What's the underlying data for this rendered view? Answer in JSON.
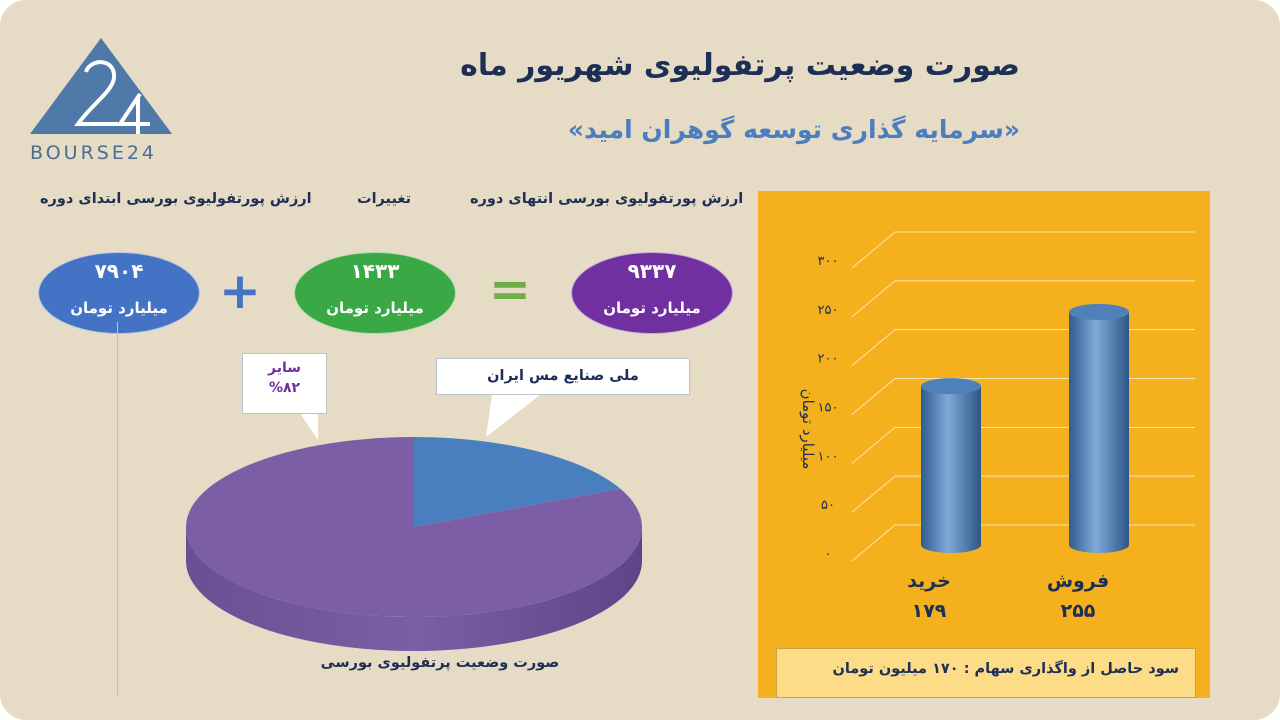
{
  "header": {
    "logo_text": "BOURSE24",
    "title": "صورت وضعیت پرتفولیوی شهریور ماه",
    "subtitle": "«سرمایه گذاری توسعه گوهران امید»"
  },
  "equation": {
    "start_label": "ارزش پورتفولیوی بورسی ابتدای دوره",
    "change_label": "تغییرات",
    "end_label": "ارزش پورتفولیوی بورسی انتهای دوره",
    "start_value": "۷۹۰۴",
    "change_value": "۱۴۳۳",
    "end_value": "۹۳۳۷",
    "unit": "میلیارد تومان",
    "start_color": "#4472c4",
    "change_color": "#3aa845",
    "end_color": "#7030a0",
    "plus_color": "#4472c4",
    "equals_color": "#70ad47"
  },
  "pie": {
    "caption": "صورت وضعیت پرتفولیوی بورسی",
    "callout_other_name": "سایر",
    "callout_other_pct": "%۸۲",
    "callout_meli": "ملی صنایع مس ایران"
  },
  "chart_data": [
    {
      "type": "pie",
      "series": [
        {
          "name": "سایر",
          "value": 82,
          "color": "#7c5ea6"
        },
        {
          "name": "ملی صنایع مس ایران",
          "value": 18,
          "color": "#4a7fbf"
        }
      ]
    },
    {
      "type": "bar",
      "categories": [
        "خرید",
        "فروش"
      ],
      "values": [
        179,
        255
      ],
      "value_labels": [
        "۱۷۹",
        "۲۵۵"
      ],
      "ylabel": "میلیارد تومان",
      "ylim": [
        0,
        300
      ],
      "yticks": [
        0,
        50,
        100,
        150,
        200,
        250,
        300
      ],
      "ytick_labels": [
        "۰",
        "۵۰",
        "۱۰۰",
        "۱۵۰",
        "۲۰۰",
        "۲۵۰",
        "۳۰۰"
      ],
      "grid": true,
      "bar_color": "#4a7fbf",
      "background": "#f5b11d"
    }
  ],
  "footnote": "سود حاصل از واگذاری سهام :  ۱۷۰ میلیون تومان"
}
